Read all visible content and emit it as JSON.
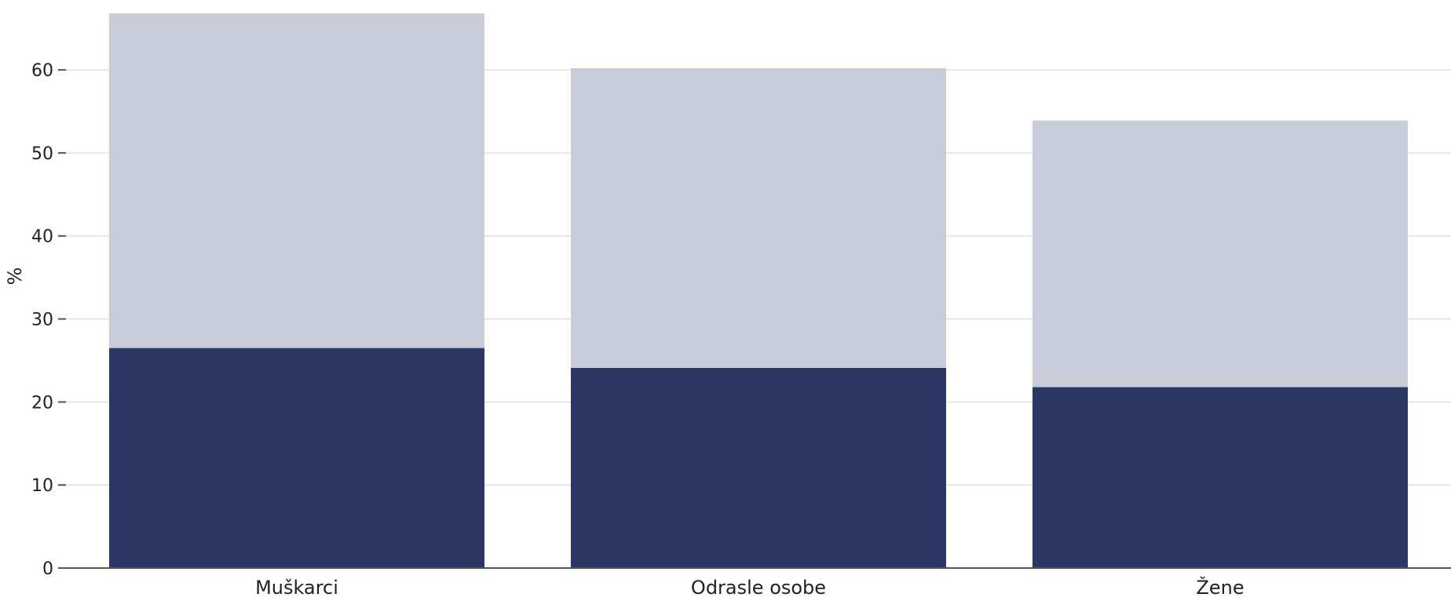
{
  "chart_data": {
    "type": "bar",
    "stacked": true,
    "categories": [
      "Muškarci",
      "Odrasle osobe",
      "Žene"
    ],
    "series": [
      {
        "values": [
          26.5,
          24.1,
          21.8
        ],
        "color": "#2b3764"
      },
      {
        "values": [
          40.3,
          36.1,
          32.1
        ],
        "color": "#c9ccd9"
      }
    ],
    "totals": [
      66.8,
      60.2,
      53.9
    ],
    "ylabel": "%",
    "xlabel": "",
    "yticks": [
      0,
      10,
      20,
      30,
      40,
      50,
      60
    ],
    "ylim": [
      0,
      67
    ],
    "grid": true
  }
}
